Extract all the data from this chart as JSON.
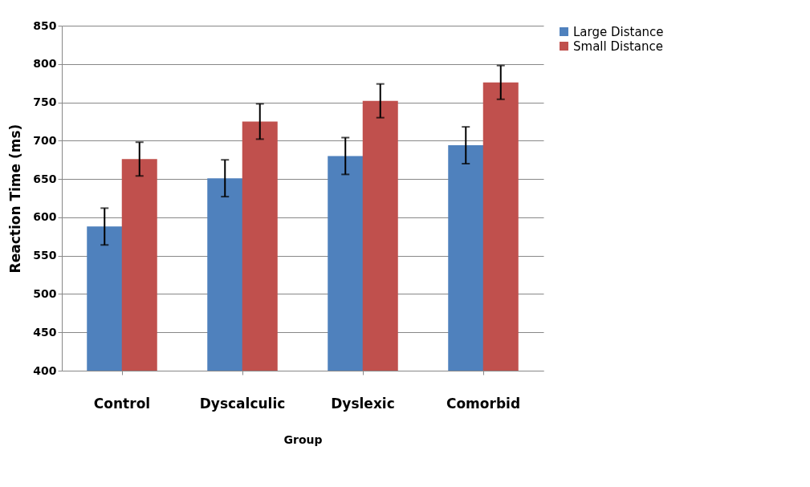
{
  "chart_data": {
    "type": "bar",
    "xlabel": "Group",
    "ylabel": "Reaction Time (ms)",
    "categories": [
      "Control",
      "Dyscalculic",
      "Dyslexic",
      "Comorbid"
    ],
    "series": [
      {
        "name": "Large Distance",
        "color": "#4f81bd",
        "values": [
          588,
          651,
          680,
          694
        ],
        "errors": [
          24,
          24,
          24,
          24
        ]
      },
      {
        "name": "Small Distance",
        "color": "#c0504d",
        "values": [
          676,
          725,
          752,
          776
        ],
        "errors": [
          22,
          23,
          22,
          22
        ]
      }
    ],
    "ylim": [
      400,
      850
    ],
    "yticks": [
      400,
      450,
      500,
      550,
      600,
      650,
      700,
      750,
      800,
      850
    ],
    "grid": "y",
    "legend": "right"
  }
}
